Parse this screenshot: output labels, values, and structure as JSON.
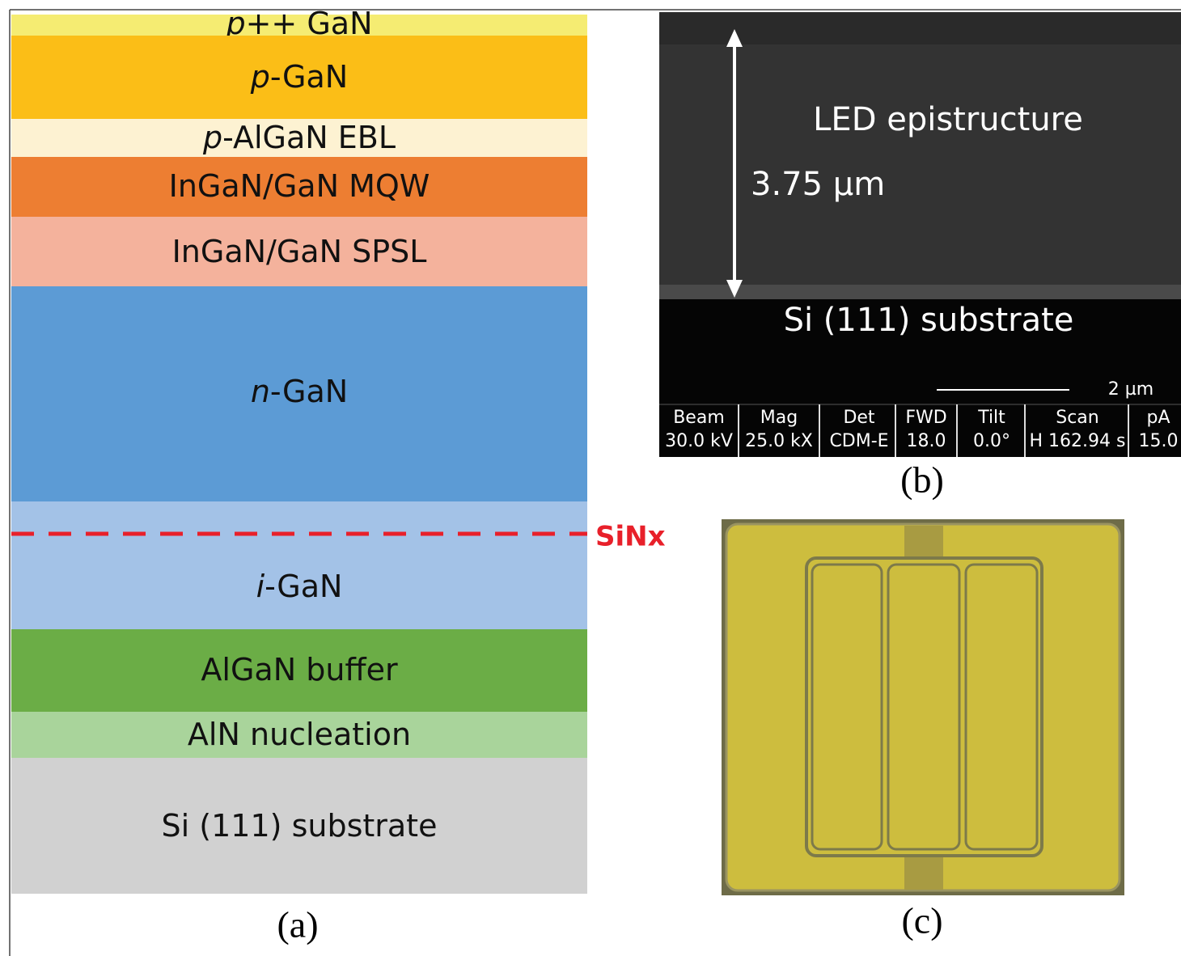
{
  "panel_a": {
    "layers": [
      {
        "prefix": "p",
        "label": "++ GaN",
        "color": "#f5ec72"
      },
      {
        "prefix": "p",
        "label": "-GaN",
        "color": "#fbbe17"
      },
      {
        "prefix": "p",
        "label": "-AlGaN EBL",
        "color": "#fdf2d2"
      },
      {
        "label": "InGaN/GaN MQW",
        "color": "#ed7e32"
      },
      {
        "label": "InGaN/GaN SPSL",
        "color": "#f4b29c"
      },
      {
        "prefix": "n",
        "label": "-GaN",
        "color": "#5c9bd5"
      },
      {
        "prefix": "i",
        "label": "-GaN",
        "color": "#a3c2e7"
      },
      {
        "label": "AlGaN buffer",
        "color": "#6bad46"
      },
      {
        "label": "AlN nucleation",
        "color": "#a9d49b"
      },
      {
        "label": "Si (111) substrate",
        "color": "#d1d1d1"
      }
    ],
    "marker": {
      "label": "SiNx",
      "color": "#e8202a"
    },
    "caption": "(a)"
  },
  "panel_b": {
    "thickness": "3.75 µm",
    "upper_label": "LED epistructure",
    "lower_label": "Si (111) substrate",
    "scale": "2 µm",
    "info": [
      {
        "name": "Beam",
        "value": "30.0 kV"
      },
      {
        "name": "Mag",
        "value": "25.0 kX"
      },
      {
        "name": "Det",
        "value": "CDM-E"
      },
      {
        "name": "FWD",
        "value": "18.0"
      },
      {
        "name": "Tilt",
        "value": "0.0°"
      },
      {
        "name": "Scan",
        "value": "H 162.94 s"
      },
      {
        "name": "pA",
        "value": "15.0"
      }
    ],
    "caption": "(b)"
  },
  "panel_c": {
    "caption": "(c)"
  }
}
